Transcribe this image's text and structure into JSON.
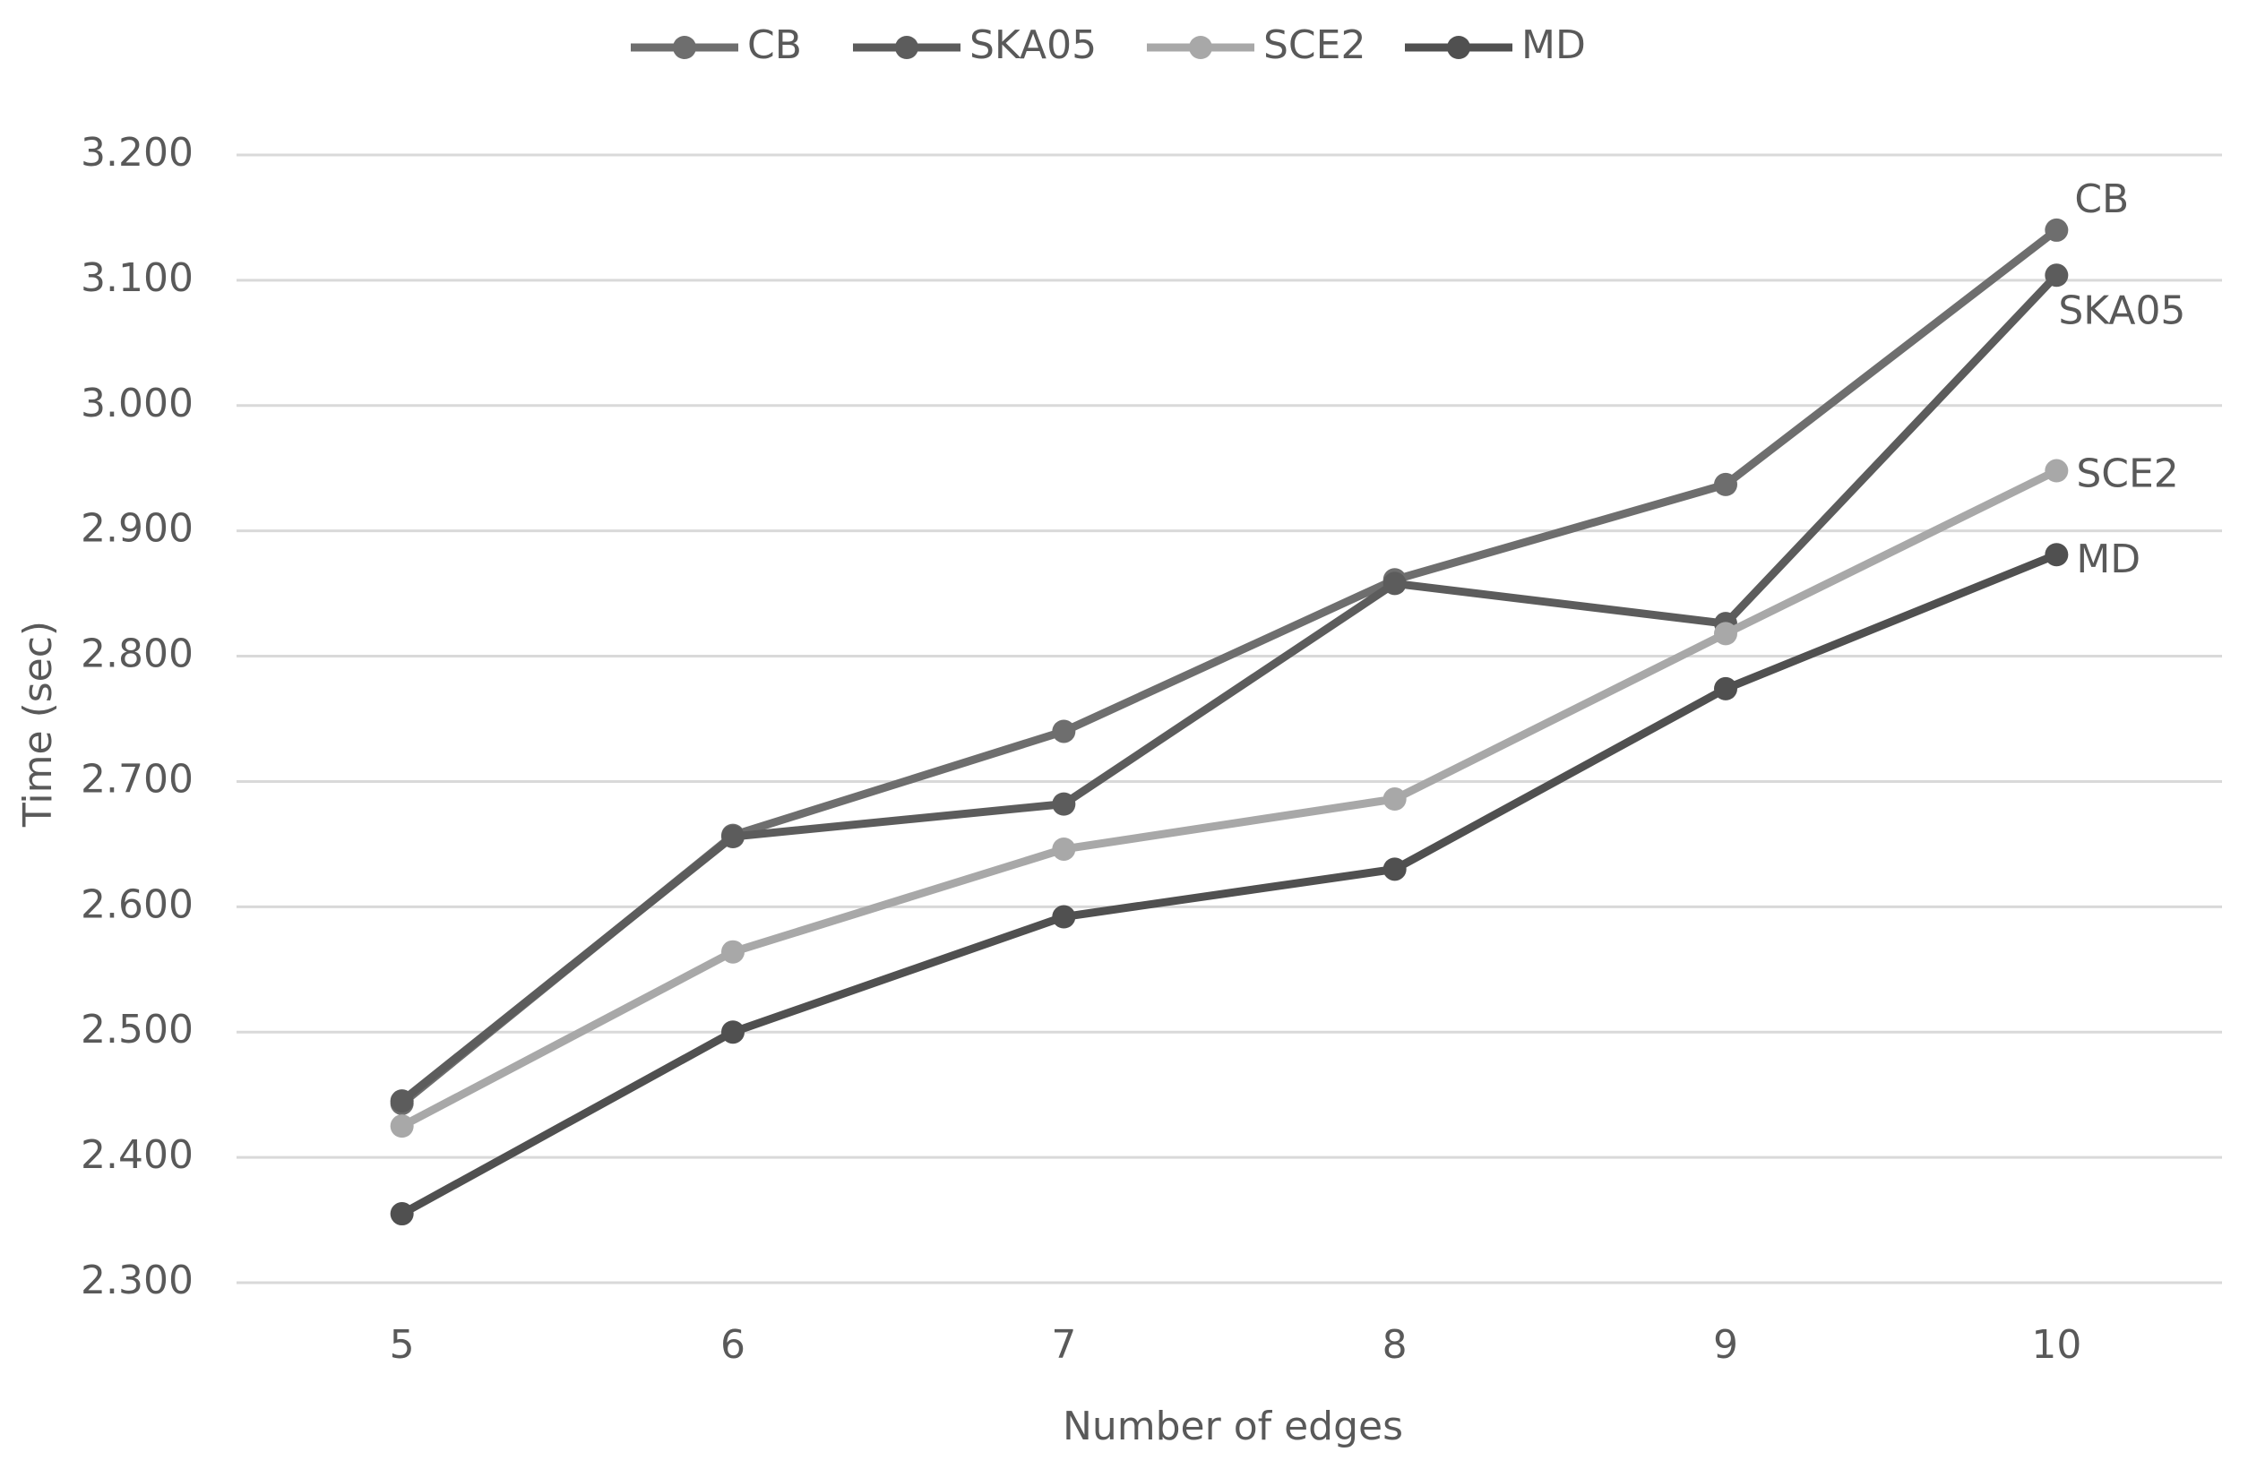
{
  "chart_data": {
    "type": "line",
    "x_label": "Number of edges",
    "y_label": "Time (sec)",
    "x": [
      5,
      6,
      7,
      8,
      9,
      10
    ],
    "xlim": [
      4.5,
      10.5
    ],
    "xticks": [
      5,
      6,
      7,
      8,
      9,
      10
    ],
    "ylim": [
      2.3,
      3.2
    ],
    "yticks": [
      {
        "value": 2.3,
        "label": "2.300"
      },
      {
        "value": 2.4,
        "label": "2.400"
      },
      {
        "value": 2.5,
        "label": "2.500"
      },
      {
        "value": 2.6,
        "label": "2.600"
      },
      {
        "value": 2.7,
        "label": "2.700"
      },
      {
        "value": 2.8,
        "label": "2.800"
      },
      {
        "value": 2.9,
        "label": "2.900"
      },
      {
        "value": 3.0,
        "label": "3.000"
      },
      {
        "value": 3.1,
        "label": "3.100"
      },
      {
        "value": 3.2,
        "label": "3.200"
      }
    ],
    "grid": true,
    "legend": "top",
    "series": [
      {
        "name": "CB",
        "color": "#6e6e6e",
        "values": [
          2.443,
          2.657,
          2.74,
          2.861,
          2.937,
          3.14
        ]
      },
      {
        "name": "SKA05",
        "color": "#5c5c5c",
        "values": [
          2.445,
          2.656,
          2.682,
          2.858,
          2.826,
          3.104
        ]
      },
      {
        "name": "SCE2",
        "color": "#a8a8a8",
        "values": [
          2.425,
          2.564,
          2.646,
          2.686,
          2.818,
          2.948
        ]
      },
      {
        "name": "MD",
        "color": "#505050",
        "values": [
          2.355,
          2.5,
          2.592,
          2.63,
          2.774,
          2.881
        ]
      }
    ]
  }
}
